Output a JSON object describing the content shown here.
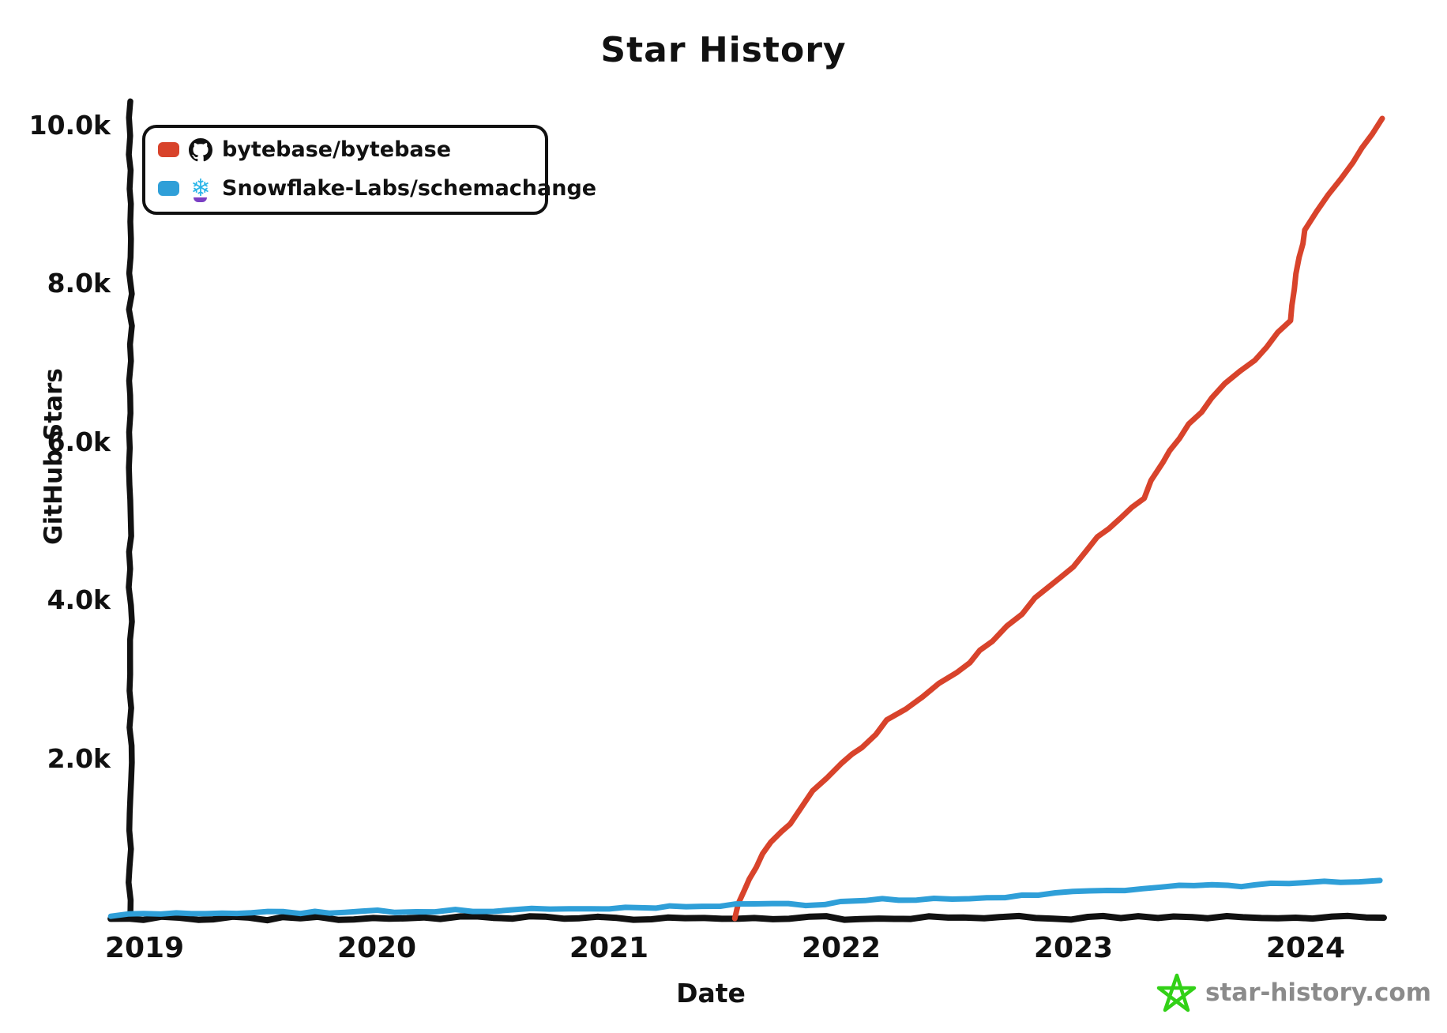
{
  "title": "Star History",
  "colors": {
    "axis": "#111111",
    "bytebase_red": "#d8432b",
    "schemachange_blue": "#2f9fd8",
    "snowflake_icon_blue": "#29b5e8",
    "snowflake_icon_purple": "#7a3fc4",
    "branding_green": "#32d117",
    "branding_gray": "#8b8b8b"
  },
  "legend": {
    "items": [
      {
        "label": "bytebase/bytebase",
        "swatch_color": "#d8432b",
        "icon": "github-octocat-icon"
      },
      {
        "label": "Snowflake-Labs/schemachange",
        "swatch_color": "#2f9fd8",
        "icon": "snowflake-icon",
        "snowflake_glyph": "❄"
      }
    ]
  },
  "branding": {
    "text": "star-history.com",
    "icon": "doodle-star-icon"
  },
  "chart_data": {
    "type": "line",
    "title": "Star History",
    "xlabel": "Date",
    "ylabel": "GitHub Stars",
    "grid": false,
    "legend_position": "top-left",
    "xlim": [
      2018.85,
      2024.35
    ],
    "ylim": [
      0,
      10300
    ],
    "x_ticks": [
      2019,
      2020,
      2021,
      2022,
      2023,
      2024
    ],
    "x_tick_labels": [
      "2019",
      "2020",
      "2021",
      "2022",
      "2023",
      "2024"
    ],
    "y_ticks": [
      2000,
      4000,
      6000,
      8000,
      10000
    ],
    "y_tick_labels": [
      "2.0k",
      "4.0k",
      "6.0k",
      "8.0k",
      "10.0k"
    ],
    "series": [
      {
        "name": "bytebase/bytebase",
        "color": "#d8432b",
        "x": [
          2021.54,
          2021.58,
          2021.63,
          2021.7,
          2021.78,
          2021.88,
          2022.0,
          2022.09,
          2022.2,
          2022.35,
          2022.5,
          2022.65,
          2022.78,
          2022.83,
          2022.9,
          2023.0,
          2023.1,
          2023.2,
          2023.3,
          2023.38,
          2023.45,
          2023.55,
          2023.65,
          2023.78,
          2023.88,
          2023.93,
          2023.97,
          2024.0,
          2024.1,
          2024.2,
          2024.33
        ],
        "y": [
          0,
          350,
          650,
          950,
          1200,
          1600,
          1950,
          2150,
          2500,
          2800,
          3100,
          3500,
          3850,
          4050,
          4180,
          4450,
          4800,
          5050,
          5300,
          5750,
          6050,
          6400,
          6750,
          7050,
          7400,
          7550,
          8350,
          8700,
          9150,
          9550,
          10100
        ]
      },
      {
        "name": "Snowflake-Labs/schemachange",
        "color": "#2f9fd8",
        "x": [
          2018.85,
          2019.0,
          2019.2,
          2019.4,
          2019.6,
          2019.8,
          2020.0,
          2020.25,
          2020.5,
          2020.75,
          2021.0,
          2021.2,
          2021.4,
          2021.55,
          2021.7,
          2021.85,
          2022.0,
          2022.1,
          2022.25,
          2022.4,
          2022.55,
          2022.7,
          2022.85,
          2023.0,
          2023.15,
          2023.3,
          2023.45,
          2023.6,
          2023.72,
          2023.85,
          2024.0,
          2024.15,
          2024.32
        ],
        "y": [
          25,
          45,
          60,
          55,
          65,
          70,
          78,
          88,
          95,
          105,
          115,
          135,
          150,
          160,
          170,
          165,
          195,
          230,
          225,
          235,
          245,
          260,
          280,
          320,
          330,
          350,
          395,
          415,
          405,
          420,
          440,
          450,
          470
        ]
      }
    ]
  }
}
